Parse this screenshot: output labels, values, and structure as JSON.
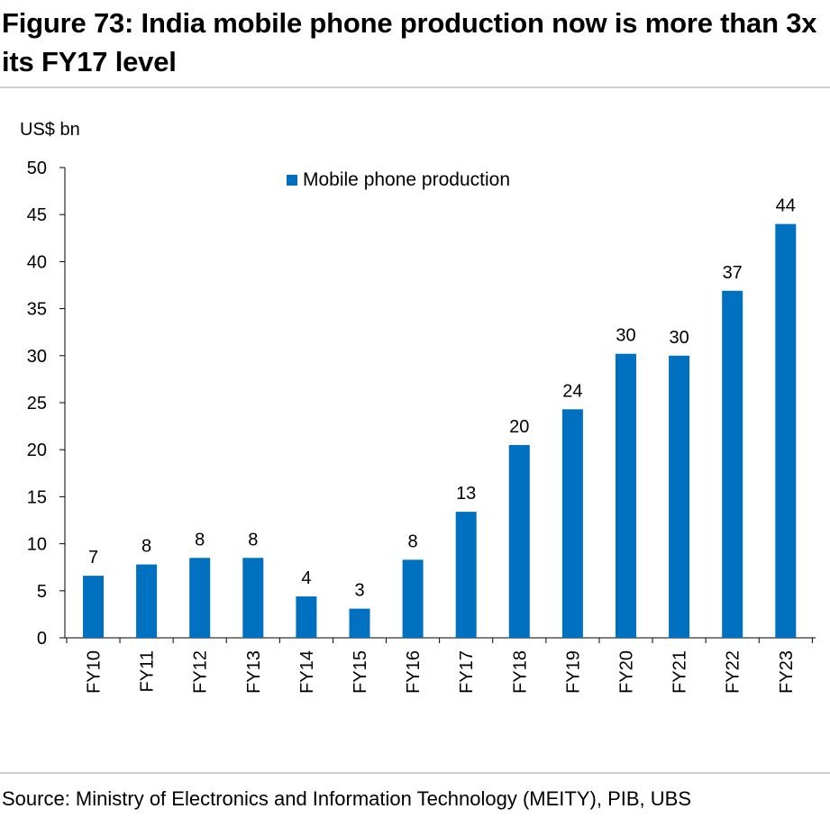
{
  "title": "Figure 73: India mobile phone production now is more than 3x its FY17 level",
  "source": "Source: Ministry of Electronics and Information Technology (MEITY), PIB, UBS",
  "colors": {
    "bar": "#0070c0",
    "axis": "#000000",
    "rule": "#d0d0d0"
  },
  "chart_data": {
    "type": "bar",
    "ylabel": "US$ bn",
    "ylim": [
      0,
      50
    ],
    "yticks": [
      0,
      5,
      10,
      15,
      20,
      25,
      30,
      35,
      40,
      45,
      50
    ],
    "categories": [
      "FY10",
      "FY11",
      "FY12",
      "FY13",
      "FY14",
      "FY15",
      "FY16",
      "FY17",
      "FY18",
      "FY19",
      "FY20",
      "FY21",
      "FY22",
      "FY23"
    ],
    "series": [
      {
        "name": "Mobile phone production",
        "values": [
          6.6,
          7.8,
          8.5,
          8.5,
          4.4,
          3.1,
          8.3,
          13.4,
          20.5,
          24.3,
          30.2,
          30.0,
          36.9,
          44.0
        ],
        "labels": [
          "7",
          "8",
          "8",
          "8",
          "4",
          "3",
          "8",
          "13",
          "20",
          "24",
          "30",
          "30",
          "37",
          "44"
        ]
      }
    ],
    "grid": false,
    "legend_position": "top-center"
  }
}
